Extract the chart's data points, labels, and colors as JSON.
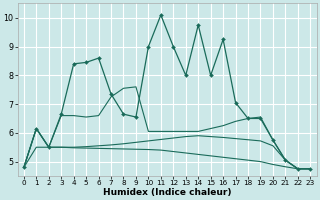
{
  "xlabel": "Humidex (Indice chaleur)",
  "xlim": [
    -0.5,
    23.5
  ],
  "ylim": [
    4.5,
    10.5
  ],
  "xticks": [
    0,
    1,
    2,
    3,
    4,
    5,
    6,
    7,
    8,
    9,
    10,
    11,
    12,
    13,
    14,
    15,
    16,
    17,
    18,
    19,
    20,
    21,
    22,
    23
  ],
  "yticks": [
    5,
    6,
    7,
    8,
    9,
    10
  ],
  "bg_color": "#cce8e8",
  "grid_color": "#ffffff",
  "line_color": "#1a6b5a",
  "line1": {
    "x": [
      0,
      1,
      2,
      3,
      4,
      5,
      6,
      7,
      8,
      9,
      10,
      11,
      12,
      13,
      14,
      15,
      16,
      17,
      18,
      19,
      20,
      21,
      22,
      23
    ],
    "y": [
      4.8,
      6.15,
      5.5,
      6.65,
      8.4,
      8.45,
      8.6,
      7.35,
      6.65,
      6.55,
      9.0,
      10.1,
      9.0,
      8.0,
      9.75,
      8.0,
      9.25,
      7.05,
      6.5,
      6.5,
      5.75,
      5.05,
      4.75,
      4.75
    ]
  },
  "line2": {
    "x": [
      0,
      1,
      2,
      3,
      4,
      5,
      6,
      7,
      8,
      9,
      10,
      11,
      12,
      13,
      14,
      15,
      16,
      17,
      18,
      19,
      20,
      21,
      22,
      23
    ],
    "y": [
      4.8,
      6.15,
      5.5,
      6.6,
      6.6,
      6.55,
      6.6,
      7.25,
      7.55,
      7.6,
      6.05,
      6.05,
      6.05,
      6.05,
      6.05,
      6.15,
      6.25,
      6.4,
      6.5,
      6.55,
      5.75,
      5.05,
      4.75,
      4.75
    ]
  },
  "line3": {
    "x": [
      0,
      1,
      2,
      3,
      4,
      5,
      6,
      7,
      8,
      9,
      10,
      11,
      12,
      13,
      14,
      15,
      16,
      17,
      18,
      19,
      20,
      21,
      22,
      23
    ],
    "y": [
      4.8,
      5.5,
      5.5,
      5.5,
      5.5,
      5.52,
      5.55,
      5.58,
      5.62,
      5.67,
      5.72,
      5.77,
      5.82,
      5.87,
      5.9,
      5.87,
      5.84,
      5.8,
      5.76,
      5.72,
      5.55,
      5.05,
      4.75,
      4.75
    ]
  },
  "line4": {
    "x": [
      0,
      1,
      2,
      3,
      4,
      5,
      6,
      7,
      8,
      9,
      10,
      11,
      12,
      13,
      14,
      15,
      16,
      17,
      18,
      19,
      20,
      21,
      22,
      23
    ],
    "y": [
      4.8,
      6.15,
      5.5,
      5.5,
      5.48,
      5.47,
      5.46,
      5.45,
      5.44,
      5.43,
      5.42,
      5.4,
      5.35,
      5.3,
      5.25,
      5.2,
      5.15,
      5.1,
      5.05,
      5.0,
      4.9,
      4.82,
      4.75,
      4.75
    ]
  }
}
